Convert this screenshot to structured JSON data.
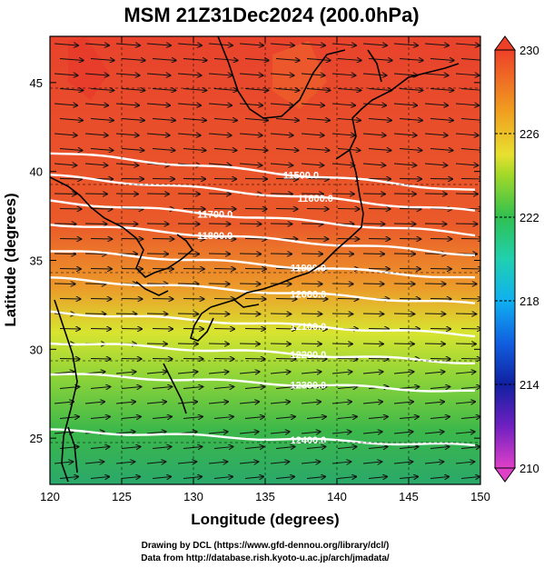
{
  "title": "MSM 21Z31Dec2024 (200.0hPa)",
  "xlabel": "Longitude (degrees)",
  "ylabel": "Latitude  (degrees)",
  "credits": [
    "Drawing by DCL (https://www.gfd-dennou.org/library/dcl/)",
    "Data from http://database.rish.kyoto-u.ac.jp/arch/jmadata/"
  ],
  "colors": {
    "fill_low": "#2aa84a",
    "fill_mid": "#d8e430",
    "fill_high": "#e8432c",
    "contour": "#ffffff",
    "coast": "#000000",
    "arrow": "#111111"
  },
  "chart_data": {
    "type": "heatmap",
    "x_ticks": [
      120,
      125,
      130,
      135,
      140,
      145,
      150
    ],
    "y_ticks": [
      25,
      30,
      35,
      40,
      45
    ],
    "xlim": [
      120,
      150
    ],
    "ylim": [
      22.4,
      47.6
    ],
    "colorbar": {
      "range": [
        210,
        230
      ],
      "tick_labels": [
        230,
        226,
        222,
        218,
        214,
        210
      ],
      "colors": [
        "#e040c8",
        "#7020c0",
        "#1020a0",
        "#1060e0",
        "#10b0f0",
        "#20d0b0",
        "#20c060",
        "#40c030",
        "#a0d828",
        "#e8e030",
        "#f0a020",
        "#f07020",
        "#ee4028"
      ]
    },
    "contours": [
      {
        "label": "11500.0",
        "lon": 137.5,
        "lat": 39.8
      },
      {
        "label": "11600.0",
        "lon": 138.5,
        "lat": 38.5
      },
      {
        "label": "11700.0",
        "lon": 131.5,
        "lat": 37.6
      },
      {
        "label": "11800.0",
        "lon": 131.5,
        "lat": 36.4
      },
      {
        "label": "11900.0",
        "lon": 138.0,
        "lat": 34.6
      },
      {
        "label": "12000.0",
        "lon": 138.0,
        "lat": 33.1
      },
      {
        "label": "12100.0",
        "lon": 138.0,
        "lat": 31.3
      },
      {
        "label": "12200.0",
        "lon": 138.0,
        "lat": 29.7
      },
      {
        "label": "12300.0",
        "lon": 138.0,
        "lat": 28.0
      },
      {
        "label": "12400.0",
        "lon": 138.0,
        "lat": 24.9
      }
    ]
  }
}
